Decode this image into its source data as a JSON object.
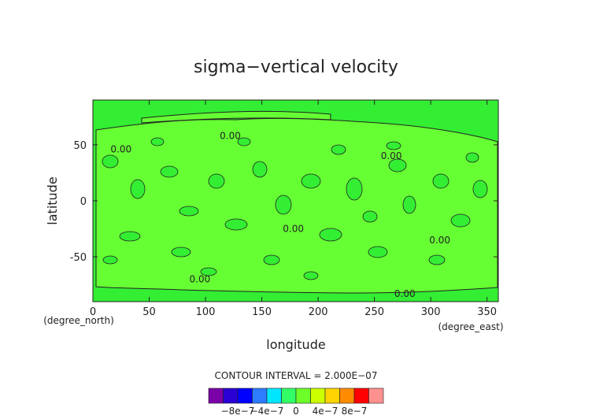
{
  "chart_data": {
    "type": "contour",
    "title": "sigma−vertical velocity",
    "xlabel": "longitude",
    "ylabel": "latitude",
    "x_unit": "(degree_east)",
    "y_unit": "(degree_north)",
    "xlim": [
      0,
      360
    ],
    "ylim": [
      -90,
      90
    ],
    "x_ticks": [
      0,
      50,
      100,
      150,
      200,
      250,
      300,
      350
    ],
    "y_ticks": [
      -50,
      0,
      50
    ],
    "contour_interval_text": "CONTOUR INTERVAL = 2.000E−07",
    "contour_labels": [
      {
        "text": "0.00",
        "lon": 25,
        "lat": 46
      },
      {
        "text": "0.00",
        "lon": 122,
        "lat": 58
      },
      {
        "text": "0.00",
        "lon": 265,
        "lat": 40
      },
      {
        "text": "0.00",
        "lon": 178,
        "lat": -25
      },
      {
        "text": "0.00",
        "lon": 308,
        "lat": -35
      },
      {
        "text": "0.00",
        "lon": 95,
        "lat": -70
      },
      {
        "text": "0.00",
        "lon": 277,
        "lat": -83
      }
    ],
    "colorbar": {
      "colors": [
        "#7b00a8",
        "#2a00d4",
        "#0000ff",
        "#2d7bff",
        "#00e6ff",
        "#33ff66",
        "#6cff2a",
        "#ccff00",
        "#ffd400",
        "#ff8c00",
        "#ff0000",
        "#ff9090"
      ],
      "tick_labels": [
        "−8e−7",
        "−4e−7",
        "0",
        "4e−7",
        "8e−7"
      ],
      "tick_values": [
        -8e-07,
        -4e-07,
        0,
        4e-07,
        8e-07
      ]
    },
    "fill_color": "#33ee33",
    "region_color": "#66ff33"
  }
}
